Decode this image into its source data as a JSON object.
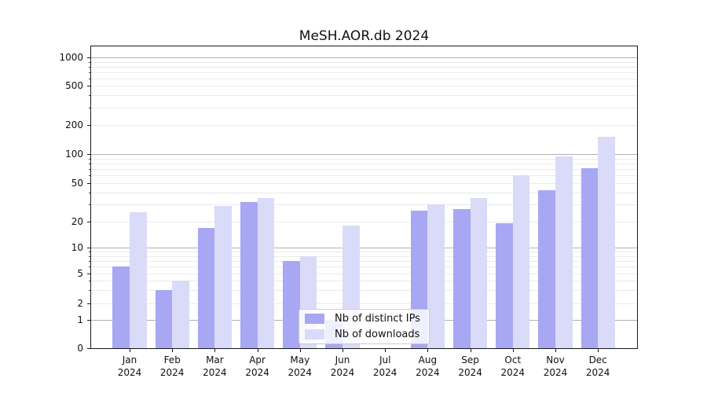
{
  "title": "MeSH.AOR.db 2024",
  "chart_data": {
    "type": "bar",
    "title": "MeSH.AOR.db 2024",
    "categories": [
      "Jan 2024",
      "Feb 2024",
      "Mar 2024",
      "Apr 2024",
      "May 2024",
      "Jun 2024",
      "Jul 2024",
      "Aug 2024",
      "Sep 2024",
      "Oct 2024",
      "Nov 2024",
      "Dec 2024"
    ],
    "series": [
      {
        "name": "Nb of distinct IPs",
        "color": "#a7a7f3",
        "values": [
          6,
          3,
          17,
          32,
          7,
          1,
          0,
          26,
          27,
          19,
          42,
          72
        ]
      },
      {
        "name": "Nb of downloads",
        "color": "#dadaf9",
        "values": [
          25,
          4,
          29,
          35,
          8,
          18,
          0,
          30,
          35,
          60,
          95,
          150
        ]
      }
    ],
    "xlabel": "",
    "ylabel": "",
    "yscale": "symlog",
    "y_ticks": [
      0,
      1,
      2,
      5,
      10,
      20,
      50,
      100,
      200,
      500,
      1000
    ],
    "y_minor_ticks": [
      3,
      4,
      6,
      7,
      8,
      9,
      30,
      40,
      60,
      70,
      80,
      90,
      300,
      400,
      600,
      700,
      800,
      900
    ],
    "ylim": [
      0,
      1300
    ],
    "grid": "horizontal major+minor",
    "legend_position": "lower center"
  },
  "colors": {
    "bar_dark": "#a7a7f3",
    "bar_light": "#dadaf9",
    "grid_major": "#b0b0b0",
    "grid_minor": "#ebebeb",
    "spine": "#1a1a1a"
  }
}
